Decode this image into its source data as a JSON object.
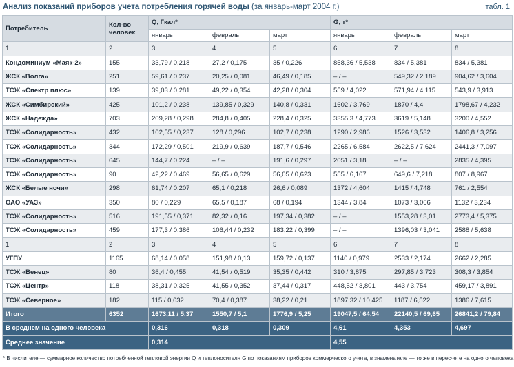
{
  "header": {
    "title": "Анализ показаний приборов учета потребления горячей воды",
    "subtitle": "(за январь-март 2004 г.)",
    "table_no": "табл. 1"
  },
  "table": {
    "head": [
      "Потребитель",
      "Кол-во человек",
      "Q, Гкал*",
      "G, т*"
    ],
    "subhead": [
      "январь",
      "февраль",
      "март",
      "январь",
      "февраль",
      "март"
    ],
    "rows": [
      [
        "1",
        "2",
        "3",
        "4",
        "5",
        "6",
        "7",
        "8"
      ],
      [
        "Кондоминиум «Маяк-2»",
        "155",
        "33,79 / 0,218",
        "27,2 / 0,175",
        "35 / 0,226",
        "858,36 / 5,538",
        "834 / 5,381",
        "834 / 5,381"
      ],
      [
        "ЖСК «Волга»",
        "251",
        "59,61 / 0,237",
        "20,25 / 0,081",
        "46,49 / 0,185",
        "– / –",
        "549,32 / 2,189",
        "904,62 / 3,604"
      ],
      [
        "ТСЖ «Спектр плюс»",
        "139",
        "39,03 / 0,281",
        "49,22 / 0,354",
        "42,28 / 0,304",
        "559 / 4,022",
        "571,94 / 4,115",
        "543,9 / 3,913"
      ],
      [
        "ЖСК «Симбирский»",
        "425",
        "101,2 / 0,238",
        "139,85 / 0,329",
        "140,8 / 0,331",
        "1602 / 3,769",
        "1870 / 4,4",
        "1798,67 / 4,232"
      ],
      [
        "ЖСК «Надежда»",
        "703",
        "209,28 / 0,298",
        "284,8 / 0,405",
        "228,4 / 0,325",
        "3355,3 / 4,773",
        "3619 / 5,148",
        "3200 / 4,552"
      ],
      [
        "ТСЖ «Солидарность»",
        "432",
        "102,55 / 0,237",
        "128 / 0,296",
        "102,7 / 0,238",
        "1290 / 2,986",
        "1526 / 3,532",
        "1406,8 / 3,256"
      ],
      [
        "ТСЖ «Солидарность»",
        "344",
        "172,29 / 0,501",
        "219,9 / 0,639",
        "187,7 / 0,546",
        "2265 / 6,584",
        "2622,5 / 7,624",
        "2441,3 / 7,097"
      ],
      [
        "ТСЖ «Солидарность»",
        "645",
        "144,7 / 0,224",
        "– / –",
        "191,6 / 0,297",
        "2051 / 3,18",
        "– / –",
        "2835 / 4,395"
      ],
      [
        "ТСЖ «Солидарность»",
        "90",
        "42,22 / 0,469",
        "56,65 / 0,629",
        "56,05 / 0,623",
        "555 / 6,167",
        "649,6 / 7,218",
        "807 / 8,967"
      ],
      [
        "ЖСК «Белые ночи»",
        "298",
        "61,74 / 0,207",
        "65,1 / 0,218",
        "26,6 / 0,089",
        "1372 / 4,604",
        "1415 / 4,748",
        "761 / 2,554"
      ],
      [
        "ОАО «УАЗ»",
        "350",
        "80 / 0,229",
        "65,5 / 0,187",
        "68 / 0,194",
        "1344 / 3,84",
        "1073 / 3,066",
        "1132 / 3,234"
      ],
      [
        "ТСЖ «Солидарность»",
        "516",
        "191,55 / 0,371",
        "82,32 / 0,16",
        "197,34 / 0,382",
        "– / –",
        "1553,28 / 3,01",
        "2773,4 / 5,375"
      ],
      [
        "ТСЖ «Солидарность»",
        "459",
        "177,3 / 0,386",
        "106,44 / 0,232",
        "183,22 / 0,399",
        "– / –",
        "1396,03 / 3,041",
        "2588 / 5,638"
      ],
      [
        "1",
        "2",
        "3",
        "4",
        "5",
        "6",
        "7",
        "8"
      ],
      [
        "УГПУ",
        "1165",
        "68,14 / 0,058",
        "151,98 / 0,13",
        "159,72 / 0,137",
        "1140 / 0,979",
        "2533 / 2,174",
        "2662 / 2,285"
      ],
      [
        "ТСЖ «Венец»",
        "80",
        "36,4 / 0,455",
        "41,54 / 0,519",
        "35,35 / 0,442",
        "310 / 3,875",
        "297,85 / 3,723",
        "308,3 / 3,854"
      ],
      [
        "ТСЖ «Центр»",
        "118",
        "38,31 / 0,325",
        "41,55 / 0,352",
        "37,44 / 0,317",
        "448,52 / 3,801",
        "443 / 3,754",
        "459,17 / 3,891"
      ],
      [
        "ТСЖ «Северное»",
        "182",
        "115 / 0,632",
        "70,4 / 0,387",
        "38,22 / 0,21",
        "1897,32 / 10,425",
        "1187 / 6,522",
        "1386 / 7,615"
      ]
    ],
    "total": [
      "Итого",
      "6352",
      "1673,11 / 5,37",
      "1550,7 / 5,1",
      "1776,9 / 5,25",
      "19047,5 / 64,54",
      "22140,5 / 69,65",
      "26841,2 / 79,84"
    ],
    "per_person": [
      "В среднем на одного человека",
      "0,316",
      "0,318",
      "0,309",
      "4,61",
      "4,353",
      "4,697"
    ],
    "average": [
      "Среднее значение",
      "0,314",
      "4,55"
    ]
  },
  "footnote": "* В числителе — суммарное количество потребленной тепловой энергии Q и теплоносителя G по показаниям приборов коммерческого учета, в знаменателе — то же в пересчете на одного человека."
}
